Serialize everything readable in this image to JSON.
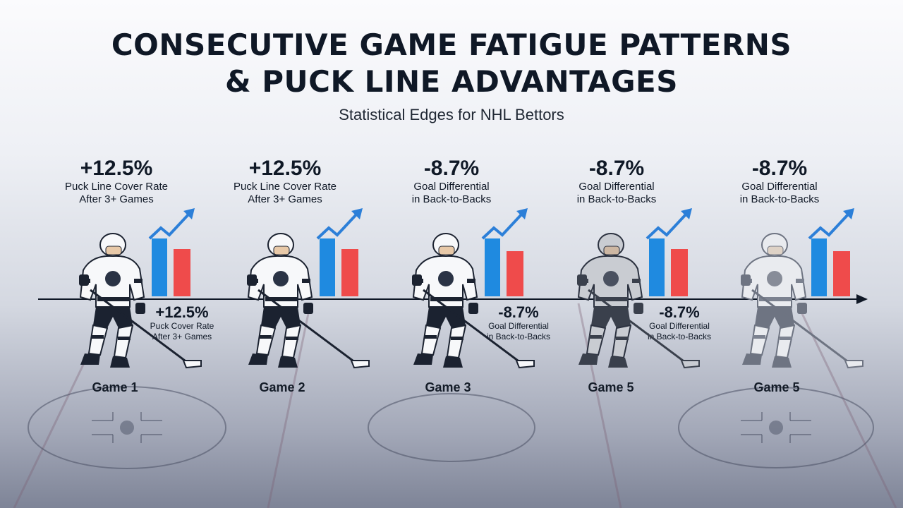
{
  "title": {
    "line1": "CONSECUTIVE GAME FATIGUE PATTERNS",
    "line2": "& PUCK LINE ADVANTAGES"
  },
  "subtitle": "Statistical Edges for NHL Bettors",
  "colors": {
    "blue_bar": "#1f8ae0",
    "red_bar": "#ef4b4b",
    "trend_arrow": "#2c7fd8"
  },
  "games": [
    {
      "label": "Game 1",
      "top_value": "+12.5%",
      "top_label_1": "Puck Line Cover Rate",
      "top_label_2": "After 3+ Games",
      "mid_value": "+12.5%",
      "mid_label_1": "Puck Cover Rate",
      "mid_label_2": "After 3+ Games",
      "jersey_tone": "white"
    },
    {
      "label": "Game 2",
      "top_value": "+12.5%",
      "top_label_1": "Puck Line Cover Rate",
      "top_label_2": "After 3+ Games",
      "jersey_tone": "white"
    },
    {
      "label": "Game 3",
      "top_value": "-8.7%",
      "top_label_1": "Goal Differential",
      "top_label_2": "in Back-to-Backs",
      "mid_value": "-8.7%",
      "mid_label_1": "Goal Differential",
      "mid_label_2": "in Back-to-Backs",
      "jersey_tone": "white"
    },
    {
      "label": "Game 5",
      "top_value": "-8.7%",
      "top_label_1": "Goal Differential",
      "top_label_2": "in Back-to-Backs",
      "mid_value": "-8.7%",
      "mid_label_1": "Goal Differential",
      "mid_label_2": "in Back-to-Backs",
      "jersey_tone": "gray"
    },
    {
      "label": "Game 5",
      "top_value": "-8.7%",
      "top_label_1": "Goal Differential",
      "top_label_2": "in Back-to-Backs",
      "jersey_tone": "faded"
    }
  ]
}
